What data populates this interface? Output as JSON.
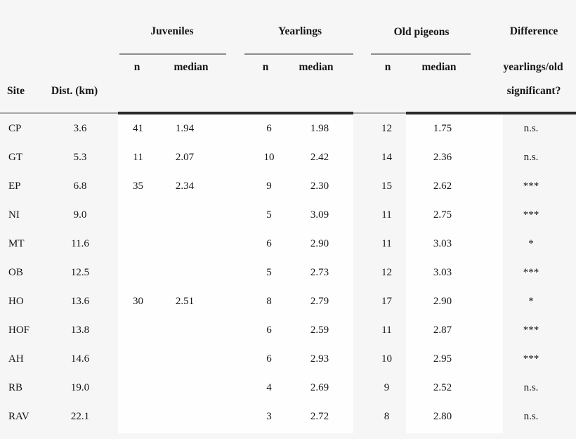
{
  "colors": {
    "page_background": "#f6f6f6",
    "band_background": "#fefefe",
    "text": "#161616",
    "rule_dark": "#2b2b2b",
    "rule_light": "#a8a8a8",
    "group_underline": "#8d8d8d"
  },
  "header": {
    "site_label": "Site",
    "dist_label": "Dist. (km)",
    "groups": [
      {
        "label": "Juveniles",
        "n": "n",
        "median": "median"
      },
      {
        "label": "Yearlings",
        "n": "n",
        "median": "median"
      },
      {
        "label": "Old pigeons",
        "n": "n",
        "median": "median"
      }
    ],
    "difference": {
      "line1": "Difference",
      "line2": "yearlings/old",
      "line3": "significant?"
    }
  },
  "column_keys": [
    "site",
    "dist-km",
    "juveniles-n",
    "juveniles-median",
    "yearlings-n",
    "yearlings-median",
    "old-pigeons-n",
    "old-pigeons-median",
    "difference-significance"
  ],
  "chart_data": {
    "type": "table",
    "title": "",
    "columns": [
      "Site",
      "Dist. (km)",
      "Juveniles n",
      "Juveniles median",
      "Yearlings n",
      "Yearlings median",
      "Old pigeons n",
      "Old pigeons median",
      "Difference yearlings/old significant?"
    ],
    "rows": [
      [
        "CP",
        "3.6",
        "41",
        "1.94",
        "6",
        "1.98",
        "12",
        "1.75",
        "n.s."
      ],
      [
        "GT",
        "5.3",
        "11",
        "2.07",
        "10",
        "2.42",
        "14",
        "2.36",
        "n.s."
      ],
      [
        "EP",
        "6.8",
        "35",
        "2.34",
        "9",
        "2.30",
        "15",
        "2.62",
        "***"
      ],
      [
        "NI",
        "9.0",
        "",
        "",
        "5",
        "3.09",
        "11",
        "2.75",
        "***"
      ],
      [
        "MT",
        "11.6",
        "",
        "",
        "6",
        "2.90",
        "11",
        "3.03",
        "*"
      ],
      [
        "OB",
        "12.5",
        "",
        "",
        "5",
        "2.73",
        "12",
        "3.03",
        "***"
      ],
      [
        "HO",
        "13.6",
        "30",
        "2.51",
        "8",
        "2.79",
        "17",
        "2.90",
        "*"
      ],
      [
        "HOF",
        "13.8",
        "",
        "",
        "6",
        "2.59",
        "11",
        "2.87",
        "***"
      ],
      [
        "AH",
        "14.6",
        "",
        "",
        "6",
        "2.93",
        "10",
        "2.95",
        "***"
      ],
      [
        "RB",
        "19.0",
        "",
        "",
        "4",
        "2.69",
        "9",
        "2.52",
        "n.s."
      ],
      [
        "RAV",
        "22.1",
        "",
        "",
        "3",
        "2.72",
        "8",
        "2.80",
        "n.s."
      ]
    ],
    "legend_note": {
      "significance_values_used": [
        "n.s.",
        "*",
        "***"
      ]
    },
    "layout": {
      "grid": "off",
      "grouped_column_headers": true,
      "banding": "vertical white bands under Juveniles/Yearlings block and Old-pigeons median block"
    }
  }
}
